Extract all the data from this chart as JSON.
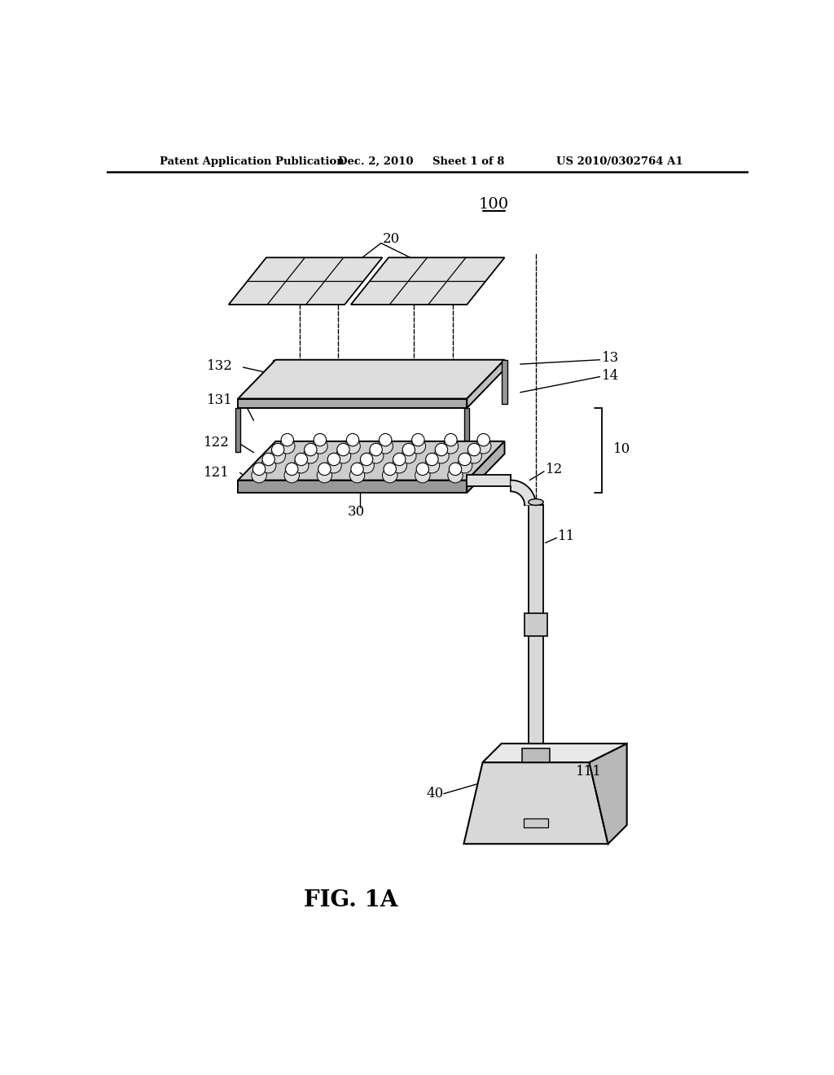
{
  "bg_color": "#ffffff",
  "lc": "#000000",
  "gray_top": "#d8d8d8",
  "gray_side": "#aaaaaa",
  "gray_light": "#eeeeee",
  "header_left": "Patent Application Publication",
  "header_date": "Dec. 2, 2010",
  "header_sheet": "Sheet 1 of 8",
  "header_patent": "US 2010/0302764 A1",
  "fig_label": "FIG. 1A"
}
